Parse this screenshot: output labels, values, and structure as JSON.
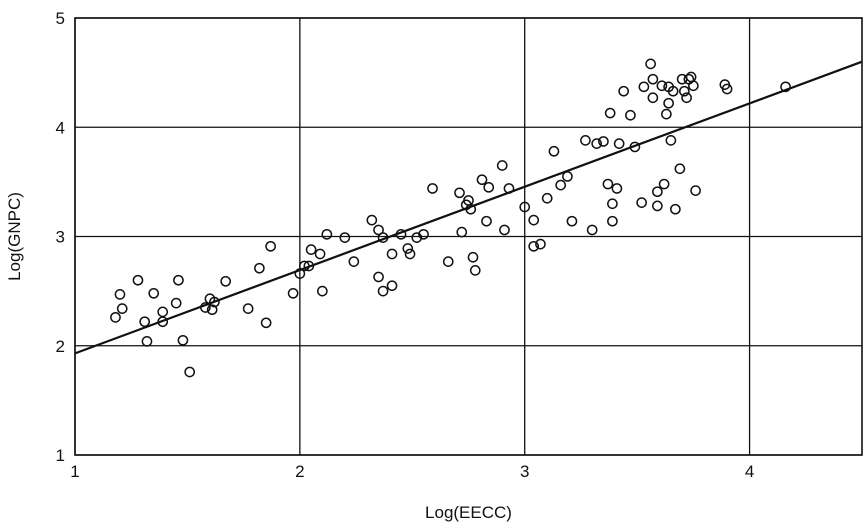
{
  "chart_data": {
    "type": "scatter",
    "xlabel": "Log(EECC)",
    "ylabel": "Log(GNPC)",
    "xlim": [
      1,
      4.5
    ],
    "ylim": [
      1,
      5
    ],
    "xticks": [
      "1",
      "2",
      "3",
      "4"
    ],
    "yticks": [
      "1",
      "2",
      "3",
      "4",
      "5"
    ],
    "grid": true,
    "fit_line": {
      "x": [
        1,
        4.5
      ],
      "y": [
        1.93,
        4.6
      ]
    },
    "points": [
      {
        "x": 1.18,
        "y": 2.26
      },
      {
        "x": 1.2,
        "y": 2.47
      },
      {
        "x": 1.21,
        "y": 2.34
      },
      {
        "x": 1.28,
        "y": 2.6
      },
      {
        "x": 1.31,
        "y": 2.22
      },
      {
        "x": 1.32,
        "y": 2.04
      },
      {
        "x": 1.35,
        "y": 2.48
      },
      {
        "x": 1.39,
        "y": 2.31
      },
      {
        "x": 1.39,
        "y": 2.22
      },
      {
        "x": 1.45,
        "y": 2.39
      },
      {
        "x": 1.46,
        "y": 2.6
      },
      {
        "x": 1.48,
        "y": 2.05
      },
      {
        "x": 1.51,
        "y": 1.76
      },
      {
        "x": 1.58,
        "y": 2.35
      },
      {
        "x": 1.6,
        "y": 2.43
      },
      {
        "x": 1.61,
        "y": 2.33
      },
      {
        "x": 1.62,
        "y": 2.4
      },
      {
        "x": 1.67,
        "y": 2.59
      },
      {
        "x": 1.77,
        "y": 2.34
      },
      {
        "x": 1.82,
        "y": 2.71
      },
      {
        "x": 1.85,
        "y": 2.21
      },
      {
        "x": 1.87,
        "y": 2.91
      },
      {
        "x": 1.97,
        "y": 2.48
      },
      {
        "x": 2.0,
        "y": 2.66
      },
      {
        "x": 2.02,
        "y": 2.73
      },
      {
        "x": 2.04,
        "y": 2.73
      },
      {
        "x": 2.05,
        "y": 2.88
      },
      {
        "x": 2.09,
        "y": 2.84
      },
      {
        "x": 2.1,
        "y": 2.5
      },
      {
        "x": 2.12,
        "y": 3.02
      },
      {
        "x": 2.2,
        "y": 2.99
      },
      {
        "x": 2.24,
        "y": 2.77
      },
      {
        "x": 2.32,
        "y": 3.15
      },
      {
        "x": 2.35,
        "y": 3.06
      },
      {
        "x": 2.35,
        "y": 2.63
      },
      {
        "x": 2.37,
        "y": 2.99
      },
      {
        "x": 2.37,
        "y": 2.5
      },
      {
        "x": 2.41,
        "y": 2.55
      },
      {
        "x": 2.41,
        "y": 2.84
      },
      {
        "x": 2.45,
        "y": 3.02
      },
      {
        "x": 2.48,
        "y": 2.89
      },
      {
        "x": 2.49,
        "y": 2.84
      },
      {
        "x": 2.52,
        "y": 2.99
      },
      {
        "x": 2.55,
        "y": 3.02
      },
      {
        "x": 2.59,
        "y": 3.44
      },
      {
        "x": 2.66,
        "y": 2.77
      },
      {
        "x": 2.71,
        "y": 3.4
      },
      {
        "x": 2.72,
        "y": 3.04
      },
      {
        "x": 2.74,
        "y": 3.29
      },
      {
        "x": 2.75,
        "y": 3.33
      },
      {
        "x": 2.76,
        "y": 3.25
      },
      {
        "x": 2.77,
        "y": 2.81
      },
      {
        "x": 2.78,
        "y": 2.69
      },
      {
        "x": 2.81,
        "y": 3.52
      },
      {
        "x": 2.83,
        "y": 3.14
      },
      {
        "x": 2.84,
        "y": 3.45
      },
      {
        "x": 2.9,
        "y": 3.65
      },
      {
        "x": 2.91,
        "y": 3.06
      },
      {
        "x": 2.93,
        "y": 3.44
      },
      {
        "x": 3.0,
        "y": 3.27
      },
      {
        "x": 3.04,
        "y": 3.15
      },
      {
        "x": 3.04,
        "y": 2.91
      },
      {
        "x": 3.07,
        "y": 2.93
      },
      {
        "x": 3.1,
        "y": 3.35
      },
      {
        "x": 3.13,
        "y": 3.78
      },
      {
        "x": 3.16,
        "y": 3.47
      },
      {
        "x": 3.19,
        "y": 3.55
      },
      {
        "x": 3.21,
        "y": 3.14
      },
      {
        "x": 3.27,
        "y": 3.88
      },
      {
        "x": 3.3,
        "y": 3.06
      },
      {
        "x": 3.32,
        "y": 3.85
      },
      {
        "x": 3.35,
        "y": 3.87
      },
      {
        "x": 3.37,
        "y": 3.48
      },
      {
        "x": 3.38,
        "y": 4.13
      },
      {
        "x": 3.39,
        "y": 3.3
      },
      {
        "x": 3.39,
        "y": 3.14
      },
      {
        "x": 3.41,
        "y": 3.44
      },
      {
        "x": 3.42,
        "y": 3.85
      },
      {
        "x": 3.44,
        "y": 4.33
      },
      {
        "x": 3.47,
        "y": 4.11
      },
      {
        "x": 3.49,
        "y": 3.82
      },
      {
        "x": 3.52,
        "y": 3.31
      },
      {
        "x": 3.53,
        "y": 4.37
      },
      {
        "x": 3.56,
        "y": 4.58
      },
      {
        "x": 3.57,
        "y": 4.44
      },
      {
        "x": 3.57,
        "y": 4.27
      },
      {
        "x": 3.59,
        "y": 3.28
      },
      {
        "x": 3.59,
        "y": 3.41
      },
      {
        "x": 3.61,
        "y": 4.38
      },
      {
        "x": 3.62,
        "y": 3.48
      },
      {
        "x": 3.63,
        "y": 4.12
      },
      {
        "x": 3.64,
        "y": 4.37
      },
      {
        "x": 3.64,
        "y": 4.22
      },
      {
        "x": 3.65,
        "y": 3.88
      },
      {
        "x": 3.66,
        "y": 4.33
      },
      {
        "x": 3.67,
        "y": 3.25
      },
      {
        "x": 3.69,
        "y": 3.62
      },
      {
        "x": 3.7,
        "y": 4.44
      },
      {
        "x": 3.71,
        "y": 4.33
      },
      {
        "x": 3.72,
        "y": 4.27
      },
      {
        "x": 3.73,
        "y": 4.44
      },
      {
        "x": 3.74,
        "y": 4.46
      },
      {
        "x": 3.75,
        "y": 4.38
      },
      {
        "x": 3.76,
        "y": 3.42
      },
      {
        "x": 3.89,
        "y": 4.39
      },
      {
        "x": 3.9,
        "y": 4.35
      },
      {
        "x": 4.16,
        "y": 4.37
      }
    ]
  }
}
